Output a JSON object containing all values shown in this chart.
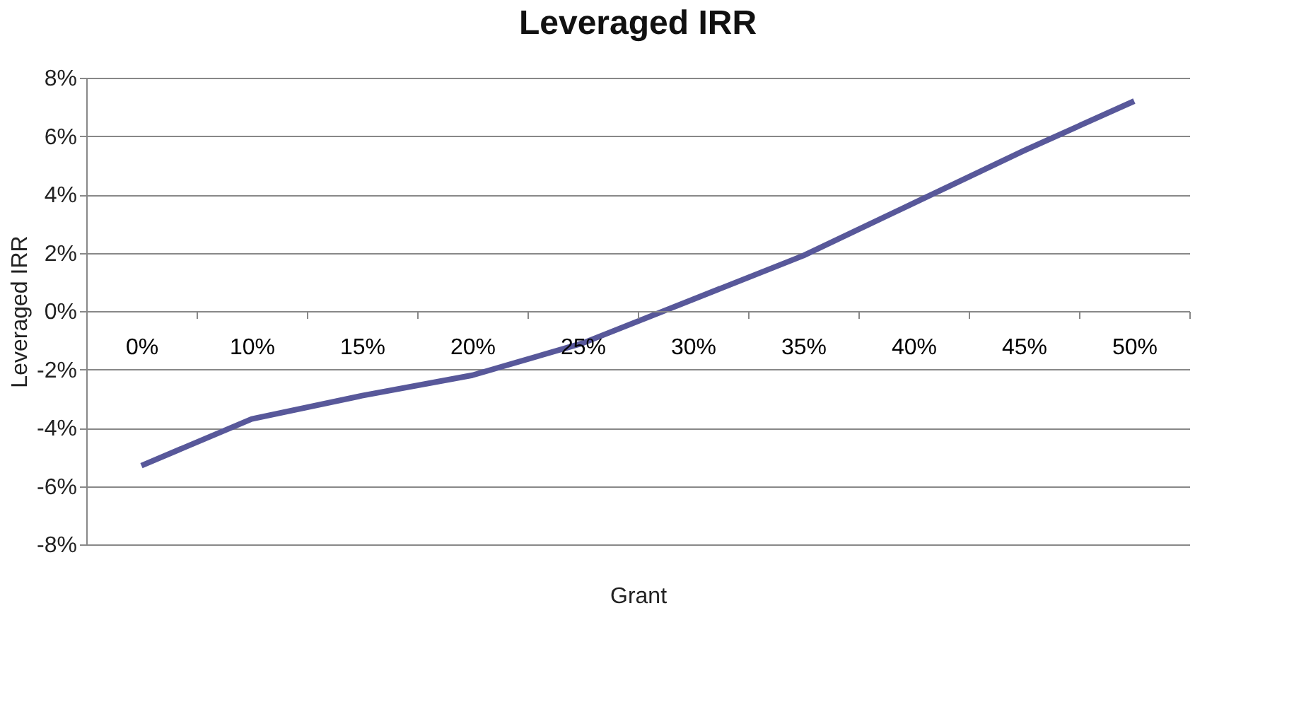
{
  "chart_data": {
    "type": "line",
    "title": "Leveraged IRR",
    "xlabel": "Grant",
    "ylabel": "Leveraged IRR",
    "categories": [
      "0%",
      "10%",
      "15%",
      "20%",
      "25%",
      "30%",
      "35%",
      "40%",
      "45%",
      "50%"
    ],
    "series": [
      {
        "color": "#58589a",
        "values": [
          -5.3,
          -3.7,
          -2.9,
          -2.2,
          -1.1,
          0.4,
          1.9,
          3.7,
          5.5,
          7.2
        ]
      }
    ],
    "ylim": [
      -8,
      8
    ],
    "yticks": [
      {
        "value": -8,
        "label": "-8%"
      },
      {
        "value": -6,
        "label": "-6%"
      },
      {
        "value": -4,
        "label": "-4%"
      },
      {
        "value": -2,
        "label": "-2%"
      },
      {
        "value": 0,
        "label": "0%"
      },
      {
        "value": 2,
        "label": "2%"
      },
      {
        "value": 4,
        "label": "4%"
      },
      {
        "value": 6,
        "label": "6%"
      },
      {
        "value": 8,
        "label": "8%"
      }
    ],
    "grid": "y",
    "marker": "none",
    "line_style": "solid"
  }
}
